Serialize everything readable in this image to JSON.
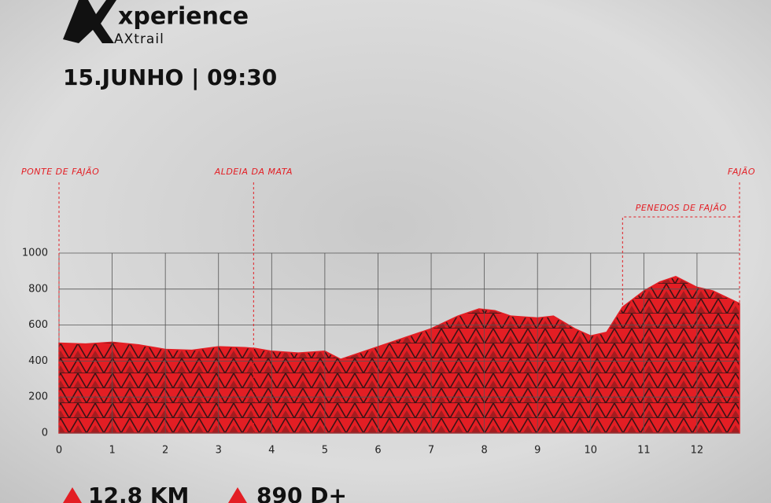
{
  "header": {
    "brand": "xperience",
    "sub_brand": "AXtrail",
    "date_time": "15.JUNHO | 09:30"
  },
  "chart_data": {
    "type": "area",
    "color": "#e31e24",
    "x": [
      0,
      0.5,
      1,
      1.5,
      2,
      2.5,
      3,
      3.5,
      3.7,
      4,
      4.5,
      5,
      5.3,
      5.6,
      6,
      6.5,
      7,
      7.5,
      7.9,
      8.2,
      8.5,
      9,
      9.3,
      9.7,
      10,
      10.3,
      10.6,
      11,
      11.3,
      11.6,
      12,
      12.3,
      12.8
    ],
    "values": [
      500,
      495,
      505,
      490,
      465,
      460,
      480,
      475,
      470,
      455,
      445,
      455,
      410,
      440,
      480,
      530,
      580,
      650,
      690,
      680,
      650,
      640,
      650,
      580,
      540,
      560,
      700,
      790,
      840,
      870,
      810,
      790,
      720
    ],
    "xlim": [
      0,
      12.8
    ],
    "ylim": [
      0,
      1000
    ],
    "xticks": [
      0,
      1,
      2,
      3,
      4,
      5,
      6,
      7,
      8,
      9,
      10,
      11,
      12
    ],
    "yticks": [
      0,
      200,
      400,
      600,
      800,
      1000
    ],
    "grid": true,
    "landmarks": [
      {
        "label": "PONTE DE FAJÃO",
        "km": 0
      },
      {
        "label": "ALDEIA DA MATA",
        "km": 3.66
      },
      {
        "label": "FAJÃO",
        "km": 12.8
      }
    ],
    "section": {
      "label": "PENEDOS DE FAJÃO",
      "from": 10.6,
      "to": 12.8
    }
  },
  "footer": {
    "distance": "12.8 KM",
    "elevation_gain": "890 D+"
  }
}
